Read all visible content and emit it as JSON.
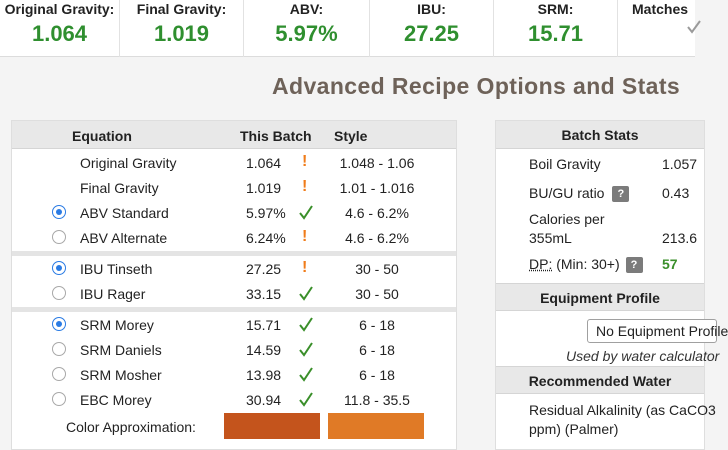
{
  "stats": [
    {
      "label": "Original Gravity:",
      "value": "1.064"
    },
    {
      "label": "Final Gravity:",
      "value": "1.019"
    },
    {
      "label": "ABV:",
      "value": "5.97%"
    },
    {
      "label": "IBU:",
      "value": "27.25"
    },
    {
      "label": "SRM:",
      "value": "15.71"
    },
    {
      "label": "Matches"
    }
  ],
  "heading": "Advanced Recipe Options and Stats",
  "table": {
    "headers": {
      "equation": "Equation",
      "batch": "This Batch",
      "style": "Style"
    },
    "rows": [
      {
        "name": "Original Gravity",
        "batch": "1.064",
        "status": "warn",
        "style": "1.048 - 1.06"
      },
      {
        "name": "Final Gravity",
        "batch": "1.019",
        "status": "warn",
        "style": "1.01 - 1.016"
      },
      {
        "name": "ABV Standard",
        "batch": "5.97%",
        "status": "ok",
        "style": "4.6 - 6.2%",
        "radio": "on"
      },
      {
        "name": "ABV Alternate",
        "batch": "6.24%",
        "status": "warn",
        "style": "4.6 - 6.2%",
        "radio": "off"
      },
      {
        "name": "IBU Tinseth",
        "batch": "27.25",
        "status": "warn",
        "style": "30 - 50",
        "radio": "on"
      },
      {
        "name": "IBU Rager",
        "batch": "33.15",
        "status": "ok",
        "style": "30 - 50",
        "radio": "off"
      },
      {
        "name": "SRM Morey",
        "batch": "15.71",
        "status": "ok",
        "style": "6 - 18",
        "radio": "on"
      },
      {
        "name": "SRM Daniels",
        "batch": "14.59",
        "status": "ok",
        "style": "6 - 18",
        "radio": "off"
      },
      {
        "name": "SRM Mosher",
        "batch": "13.98",
        "status": "ok",
        "style": "6 - 18",
        "radio": "off"
      },
      {
        "name": "EBC Morey",
        "batch": "30.94",
        "status": "ok",
        "style": "11.8 - 35.5",
        "radio": "off"
      }
    ],
    "color_label": "Color Approximation:",
    "warn_glyph": "!",
    "colors": {
      "batch": "#c4541c",
      "style": "#e07a26",
      "warn": "#f07c1a",
      "ok": "#3a8f2a",
      "radio": "#2a7be4"
    }
  },
  "batch_stats": {
    "title": "Batch Stats",
    "boil_gravity_label": "Boil Gravity",
    "boil_gravity_value": "1.057",
    "bugu_label": "BU/GU ratio",
    "bugu_value": "0.43",
    "calories_label_1": "Calories per",
    "calories_label_2": "355mL",
    "calories_value": "213.6",
    "dp_label": "DP:",
    "dp_hint": "(Min: 30+)",
    "dp_value": "57",
    "help_glyph": "?"
  },
  "equipment": {
    "title": "Equipment Profile",
    "selected": "No Equipment Profile",
    "note": "Used by water calculator"
  },
  "water": {
    "title": "Recommended Water",
    "ra_label_1": "Residual Alkalinity (as CaCO3",
    "ra_label_2": "ppm) (Palmer)"
  }
}
